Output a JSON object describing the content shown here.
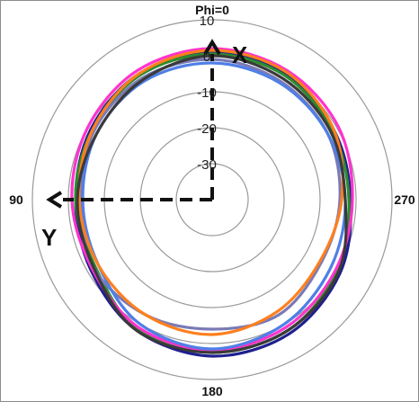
{
  "chart_data": {
    "type": "polar-line",
    "radial_ticks": [
      -30,
      -20,
      -10,
      0,
      10
    ],
    "rlim": [
      -40,
      10
    ],
    "angle_labels": {
      "top": "Phi=0",
      "left": "90",
      "right": "270",
      "bottom": "180"
    },
    "axis_arrows": {
      "up": "X",
      "left": "Y"
    },
    "grid": true,
    "legend": "none",
    "theta_deg": [
      0,
      30,
      60,
      90,
      120,
      150,
      180,
      210,
      240,
      270,
      300,
      330
    ],
    "series": [
      {
        "color": "#1f1f8f",
        "values": [
          1.0,
          0.5,
          -1.0,
          -2.0,
          -1.0,
          2.0,
          3.5,
          3.0,
          1.0,
          -1.5,
          -1.0,
          0.5
        ]
      },
      {
        "color": "#2e8b2e",
        "values": [
          0.5,
          0.0,
          -1.5,
          -2.0,
          -2.5,
          1.5,
          2.5,
          2.0,
          0.0,
          -2.0,
          -1.5,
          0.0
        ]
      },
      {
        "color": "#ff33cc",
        "values": [
          2.0,
          1.5,
          0.0,
          -1.0,
          -1.5,
          1.0,
          1.8,
          1.0,
          -0.5,
          -1.0,
          0.5,
          1.5
        ]
      },
      {
        "color": "#7a7ab5",
        "values": [
          -1.0,
          -1.0,
          -2.0,
          -3.5,
          -2.0,
          -3.0,
          -4.0,
          -3.0,
          -5.0,
          -4.5,
          -3.0,
          -2.0
        ]
      },
      {
        "color": "#4f7fe6",
        "values": [
          -2.0,
          -2.0,
          -3.0,
          -4.0,
          -3.5,
          0.0,
          1.5,
          0.0,
          -2.0,
          -3.0,
          -3.0,
          -2.5
        ]
      },
      {
        "color": "#ff7f1e",
        "values": [
          1.5,
          0.5,
          -1.5,
          -3.0,
          -3.5,
          -3.0,
          -2.5,
          -4.0,
          -5.5,
          -4.0,
          -1.0,
          1.0
        ]
      },
      {
        "color": "#3a3a3a",
        "values": [
          0.0,
          -1.5,
          -3.0,
          -2.5,
          -2.0,
          2.0,
          2.5,
          2.0,
          0.5,
          -3.0,
          -2.0,
          -1.0
        ]
      }
    ]
  }
}
